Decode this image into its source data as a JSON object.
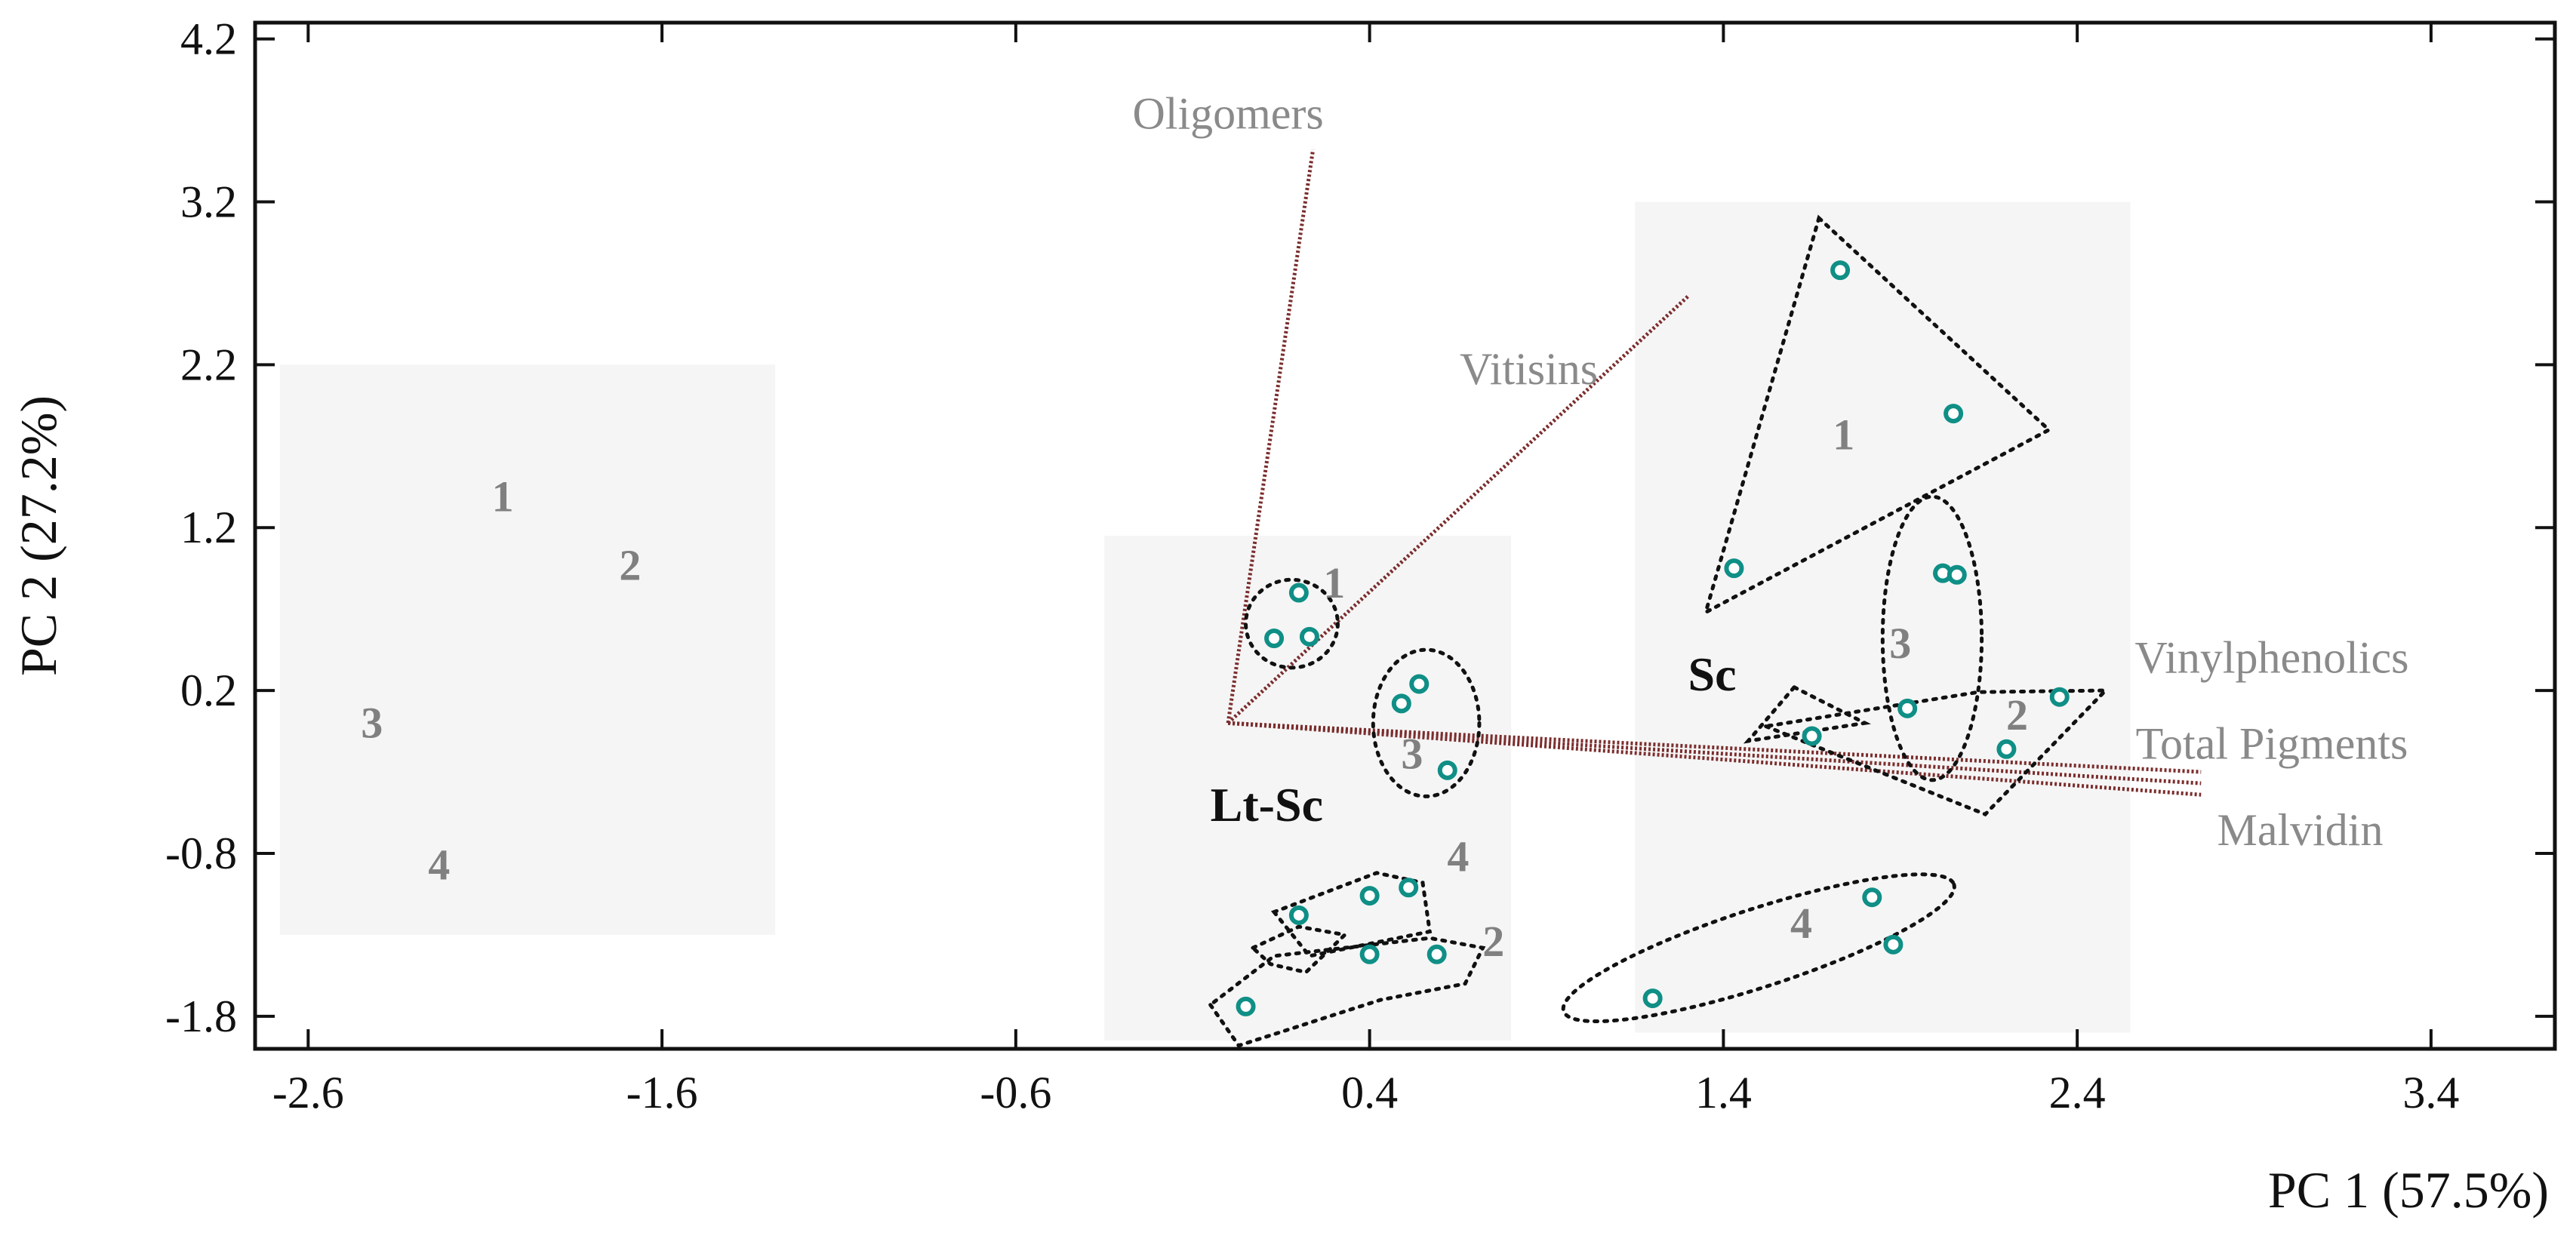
{
  "chart_data": {
    "type": "scatter",
    "title": "",
    "xlabel": "PC 1 (57.5%)",
    "ylabel": "PC 2 (27.2%)",
    "xlim": [
      -2.75,
      3.75
    ],
    "ylim": [
      -2.0,
      4.3
    ],
    "xticks": [
      -2.6,
      -1.6,
      -0.6,
      0.4,
      1.4,
      2.4,
      3.4
    ],
    "yticks": [
      -1.8,
      -0.8,
      0.2,
      1.2,
      2.2,
      3.2,
      4.2
    ],
    "xtick_labels": [
      "-2.6",
      "-1.6",
      "-0.6",
      "0.4",
      "1.4",
      "2.4",
      "3.4"
    ],
    "ytick_labels": [
      "-1.8",
      "-0.8",
      "0.2",
      "1.2",
      "2.2",
      "3.2",
      "4.2"
    ],
    "colors": {
      "point": "#0f8f86",
      "loading": "#7b2d2d",
      "panel": "#f2f2f2",
      "hull": "#111111"
    },
    "panels": [
      {
        "name": "left",
        "x_range": [
          -2.68,
          -1.28
        ],
        "y_range": [
          -1.3,
          2.2
        ]
      },
      {
        "name": "Lt-Sc",
        "x_range": [
          -0.35,
          0.8
        ],
        "y_range": [
          -1.95,
          1.15
        ]
      },
      {
        "name": "Sc",
        "x_range": [
          1.15,
          2.55
        ],
        "y_range": [
          -1.9,
          3.2
        ]
      }
    ],
    "groups": [
      {
        "name": "Lt-Sc",
        "label_x": -0.05,
        "label_y": -0.6
      },
      {
        "name": "Sc",
        "label_x": 1.3,
        "label_y": 0.2
      }
    ],
    "series": [
      {
        "name": "Lt-Sc 1",
        "points": [
          [
            0.2,
            0.8
          ],
          [
            0.13,
            0.52
          ],
          [
            0.23,
            0.53
          ]
        ]
      },
      {
        "name": "Lt-Sc 3",
        "points": [
          [
            0.54,
            0.24
          ],
          [
            0.49,
            0.12
          ],
          [
            0.62,
            -0.29
          ]
        ]
      },
      {
        "name": "Lt-Sc 4",
        "points": [
          [
            0.2,
            -1.18
          ],
          [
            0.4,
            -1.06
          ],
          [
            0.51,
            -1.01
          ]
        ]
      },
      {
        "name": "Lt-Sc 2",
        "points": [
          [
            0.4,
            -1.42
          ],
          [
            0.59,
            -1.42
          ],
          [
            0.05,
            -1.74
          ]
        ]
      },
      {
        "name": "Sc 1",
        "points": [
          [
            1.73,
            2.78
          ],
          [
            2.05,
            1.9
          ],
          [
            1.43,
            0.95
          ]
        ]
      },
      {
        "name": "Sc 3",
        "points": [
          [
            2.02,
            0.92
          ],
          [
            2.06,
            0.91
          ],
          [
            1.92,
            0.09
          ]
        ]
      },
      {
        "name": "Sc 2",
        "points": [
          [
            2.35,
            0.16
          ],
          [
            2.2,
            -0.16
          ],
          [
            1.65,
            -0.08
          ]
        ]
      },
      {
        "name": "Sc 4",
        "points": [
          [
            1.82,
            -1.07
          ],
          [
            1.88,
            -1.36
          ],
          [
            1.2,
            -1.69
          ]
        ]
      }
    ],
    "hulls": [
      {
        "name": "Lt-Sc 1",
        "shape": "ellipse",
        "center": [
          0.18,
          0.61
        ],
        "radii": [
          0.13,
          0.27
        ]
      },
      {
        "name": "Lt-Sc 3",
        "shape": "ellipse",
        "center": [
          0.56,
          0.0
        ],
        "radii": [
          0.15,
          0.45
        ]
      },
      {
        "name": "Lt-Sc 4",
        "shape": "polygon",
        "points": [
          [
            0.13,
            -1.16
          ],
          [
            0.23,
            -1.43
          ],
          [
            0.57,
            -1.28
          ],
          [
            0.55,
            -0.98
          ],
          [
            0.42,
            -0.92
          ]
        ]
      },
      {
        "name": "Lt-Sc 2",
        "shape": "polygon",
        "points": [
          [
            -0.05,
            -1.73
          ],
          [
            0.03,
            -1.98
          ],
          [
            0.43,
            -1.7
          ],
          [
            0.67,
            -1.6
          ],
          [
            0.72,
            -1.38
          ],
          [
            0.57,
            -1.32
          ],
          [
            0.13,
            -1.43
          ]
        ]
      },
      {
        "name": "Lt-Sc 2-4 bridge",
        "shape": "polygon",
        "points": [
          [
            0.07,
            -1.38
          ],
          [
            0.2,
            -1.25
          ],
          [
            0.33,
            -1.3
          ],
          [
            0.22,
            -1.53
          ],
          [
            0.12,
            -1.48
          ]
        ]
      },
      {
        "name": "Sc 1",
        "shape": "polygon",
        "points": [
          [
            1.67,
            3.1
          ],
          [
            2.32,
            1.8
          ],
          [
            1.35,
            0.68
          ]
        ]
      },
      {
        "name": "Sc 3",
        "shape": "ellipse",
        "center": [
          1.99,
          0.52
        ],
        "radii": [
          0.14,
          0.87
        ]
      },
      {
        "name": "Sc 2",
        "shape": "polygon",
        "points": [
          [
            1.52,
            -0.02
          ],
          [
            2.14,
            -0.56
          ],
          [
            2.48,
            0.2
          ],
          [
            2.12,
            0.19
          ]
        ]
      },
      {
        "name": "Sc 2 lower",
        "shape": "polygon",
        "points": [
          [
            1.6,
            0.22
          ],
          [
            1.8,
            0.0
          ],
          [
            1.47,
            -0.11
          ]
        ]
      },
      {
        "name": "Sc 4",
        "shape": "ellipse",
        "center": [
          1.5,
          -1.38
        ],
        "radii": [
          0.58,
          0.24
        ],
        "angle": -18
      }
    ],
    "loadings": [
      {
        "name": "Oligomers",
        "end": [
          0.24,
          3.52
        ]
      },
      {
        "name": "Vitisins",
        "end": [
          1.3,
          2.62
        ]
      },
      {
        "name": "Vinylphenolics",
        "end": [
          2.75,
          -0.3
        ]
      },
      {
        "name": "Total Pigments",
        "end": [
          2.75,
          -0.37
        ]
      },
      {
        "name": "Malvidin",
        "end": [
          2.75,
          -0.44
        ]
      }
    ],
    "loading_origin": [
      0.0,
      0.0
    ],
    "annotations": [
      {
        "text": "1",
        "x": -2.05,
        "y": 1.3,
        "color": "gray"
      },
      {
        "text": "2",
        "x": -1.69,
        "y": 0.88,
        "color": "gray"
      },
      {
        "text": "3",
        "x": -2.42,
        "y": -0.09,
        "color": "gray"
      },
      {
        "text": "4",
        "x": -2.23,
        "y": -0.96,
        "color": "gray"
      },
      {
        "text": "1",
        "x": 0.3,
        "y": 0.77,
        "color": "gray"
      },
      {
        "text": "3",
        "x": 0.52,
        "y": -0.28,
        "color": "gray"
      },
      {
        "text": "4",
        "x": 0.65,
        "y": -0.91,
        "color": "gray"
      },
      {
        "text": "2",
        "x": 0.75,
        "y": -1.43,
        "color": "gray"
      },
      {
        "text": "1",
        "x": 1.74,
        "y": 1.68,
        "color": "gray"
      },
      {
        "text": "3",
        "x": 1.9,
        "y": 0.4,
        "color": "gray"
      },
      {
        "text": "2",
        "x": 2.23,
        "y": -0.04,
        "color": "gray"
      },
      {
        "text": "4",
        "x": 1.62,
        "y": -1.32,
        "color": "gray"
      }
    ],
    "loading_labels": [
      {
        "text": "Oligomers",
        "x": 0.0,
        "y": 3.65
      },
      {
        "text": "Vitisins",
        "x": 0.85,
        "y": 2.08
      },
      {
        "text": "Vinylphenolics",
        "x": 2.95,
        "y": 0.31
      },
      {
        "text": "Total Pigments",
        "x": 2.95,
        "y": -0.22
      },
      {
        "text": "Malvidin",
        "x": 3.03,
        "y": -0.75
      }
    ]
  }
}
